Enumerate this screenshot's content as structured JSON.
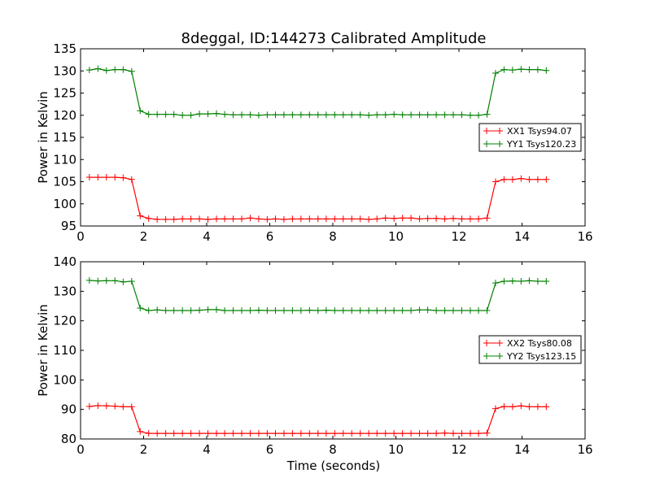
{
  "chart_data": [
    {
      "type": "line",
      "title": "8deggal, ID:144273 Calibrated Amplitude",
      "xlabel": "",
      "ylabel": "Power in Kelvin",
      "xlim": [
        0,
        16
      ],
      "ylim": [
        95,
        135
      ],
      "xticks": [
        0,
        2,
        4,
        6,
        8,
        10,
        12,
        14,
        16
      ],
      "yticks": [
        95,
        100,
        105,
        110,
        115,
        120,
        125,
        130,
        135
      ],
      "grid": false,
      "legend_position": "right",
      "x": [
        0.28,
        0.55,
        0.82,
        1.09,
        1.35,
        1.62,
        1.89,
        2.16,
        2.43,
        2.7,
        2.96,
        3.23,
        3.5,
        3.77,
        4.04,
        4.31,
        4.57,
        4.84,
        5.11,
        5.38,
        5.65,
        5.92,
        6.18,
        6.45,
        6.72,
        6.99,
        7.26,
        7.53,
        7.79,
        8.06,
        8.33,
        8.6,
        8.87,
        9.14,
        9.4,
        9.67,
        9.94,
        10.21,
        10.48,
        10.75,
        11.01,
        11.28,
        11.55,
        11.82,
        12.09,
        12.36,
        12.62,
        12.89,
        13.16,
        13.43,
        13.7,
        13.97,
        14.23,
        14.5,
        14.77
      ],
      "series": [
        {
          "name": "XX1 Tsys94.07",
          "color": "#ff0000",
          "values": [
            106,
            106,
            106,
            106,
            105.9,
            105.5,
            97.3,
            96.7,
            96.5,
            96.5,
            96.5,
            96.6,
            96.6,
            96.6,
            96.5,
            96.6,
            96.6,
            96.6,
            96.6,
            96.8,
            96.6,
            96.5,
            96.6,
            96.5,
            96.6,
            96.6,
            96.6,
            96.6,
            96.6,
            96.6,
            96.6,
            96.6,
            96.6,
            96.5,
            96.6,
            96.8,
            96.7,
            96.8,
            96.8,
            96.6,
            96.7,
            96.7,
            96.6,
            96.7,
            96.6,
            96.6,
            96.6,
            96.8,
            105,
            105.5,
            105.5,
            105.7,
            105.5,
            105.5,
            105.5
          ]
        },
        {
          "name": "YY1 Tsys120.23",
          "color": "#008000",
          "values": [
            130.2,
            130.5,
            130.1,
            130.3,
            130.3,
            129.9,
            121.0,
            120.2,
            120.2,
            120.2,
            120.2,
            120.0,
            120.0,
            120.3,
            120.3,
            120.4,
            120.2,
            120.1,
            120.1,
            120.1,
            120.0,
            120.1,
            120.1,
            120.1,
            120.1,
            120.1,
            120.1,
            120.1,
            120.1,
            120.1,
            120.1,
            120.1,
            120.1,
            120.0,
            120.1,
            120.1,
            120.2,
            120.1,
            120.1,
            120.1,
            120.1,
            120.1,
            120.1,
            120.1,
            120.1,
            120.0,
            120.0,
            120.2,
            129.5,
            130.3,
            130.2,
            130.4,
            130.3,
            130.3,
            130.1
          ]
        }
      ]
    },
    {
      "type": "line",
      "title": "",
      "xlabel": "Time (seconds)",
      "ylabel": "Power in Kelvin",
      "xlim": [
        0,
        16
      ],
      "ylim": [
        80,
        140
      ],
      "xticks": [
        0,
        2,
        4,
        6,
        8,
        10,
        12,
        14,
        16
      ],
      "yticks": [
        80,
        90,
        100,
        110,
        120,
        130,
        140
      ],
      "grid": false,
      "legend_position": "right",
      "x": [
        0.28,
        0.55,
        0.82,
        1.09,
        1.35,
        1.62,
        1.89,
        2.16,
        2.43,
        2.7,
        2.96,
        3.23,
        3.5,
        3.77,
        4.04,
        4.31,
        4.57,
        4.84,
        5.11,
        5.38,
        5.65,
        5.92,
        6.18,
        6.45,
        6.72,
        6.99,
        7.26,
        7.53,
        7.79,
        8.06,
        8.33,
        8.6,
        8.87,
        9.14,
        9.4,
        9.67,
        9.94,
        10.21,
        10.48,
        10.75,
        11.01,
        11.28,
        11.55,
        11.82,
        12.09,
        12.36,
        12.62,
        12.89,
        13.16,
        13.43,
        13.7,
        13.97,
        14.23,
        14.5,
        14.77
      ],
      "series": [
        {
          "name": "XX2 Tsys80.08",
          "color": "#ff0000",
          "values": [
            91.0,
            91.3,
            91.2,
            91.1,
            90.9,
            90.9,
            82.5,
            81.9,
            81.9,
            81.9,
            81.9,
            81.9,
            81.9,
            81.9,
            81.9,
            81.9,
            81.9,
            81.9,
            81.9,
            81.9,
            81.9,
            81.9,
            81.9,
            81.9,
            81.9,
            81.9,
            81.9,
            81.9,
            81.9,
            81.9,
            81.9,
            81.9,
            81.9,
            81.9,
            81.9,
            81.9,
            81.9,
            81.9,
            81.9,
            81.9,
            81.9,
            81.9,
            82.0,
            81.9,
            81.9,
            81.9,
            81.9,
            82.0,
            90.3,
            91.0,
            90.9,
            91.2,
            90.9,
            90.9,
            90.9
          ]
        },
        {
          "name": "YY2 Tsys123.15",
          "color": "#008000",
          "values": [
            133.7,
            133.5,
            133.6,
            133.6,
            133.2,
            133.4,
            124.3,
            123.5,
            123.7,
            123.5,
            123.5,
            123.5,
            123.5,
            123.6,
            123.8,
            123.8,
            123.5,
            123.5,
            123.5,
            123.5,
            123.6,
            123.5,
            123.5,
            123.5,
            123.5,
            123.5,
            123.6,
            123.5,
            123.6,
            123.5,
            123.5,
            123.5,
            123.5,
            123.5,
            123.5,
            123.5,
            123.5,
            123.5,
            123.5,
            123.7,
            123.7,
            123.5,
            123.5,
            123.5,
            123.5,
            123.5,
            123.5,
            123.5,
            132.8,
            133.4,
            133.5,
            133.4,
            133.6,
            133.4,
            133.4
          ]
        }
      ]
    }
  ]
}
